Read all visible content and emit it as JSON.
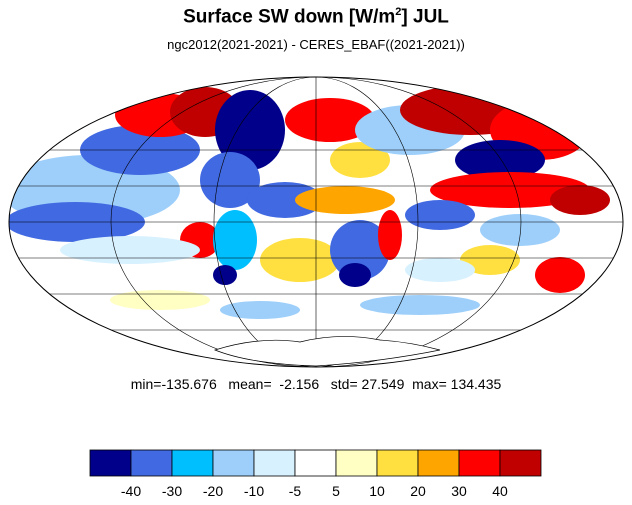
{
  "title": {
    "main": "Surface SW down [W/m",
    "superscript": "2",
    "close": "]  JUL"
  },
  "subtitle": "ngc2012(2021-2021) - CERES_EBAF((2021-2021))",
  "stats": {
    "min_label": "min=",
    "min": "-135.676",
    "mean_label": "mean=",
    "mean": "-2.156",
    "std_label": "std=",
    "std": "27.549",
    "max_label": "max=",
    "max": "134.435"
  },
  "colorbar": {
    "colors": [
      "#00008b",
      "#4169e1",
      "#00bfff",
      "#9dcffa",
      "#d8f1ff",
      "#ffffff",
      "#ffffc4",
      "#ffe040",
      "#ffa500",
      "#ff0000",
      "#c00000"
    ],
    "labels": [
      "-40",
      "-30",
      "-20",
      "-10",
      "-5",
      "5",
      "10",
      "20",
      "30",
      "40"
    ]
  },
  "map": {
    "projection": "Mollweide",
    "background": "#ffffff",
    "coastline_color": "#000000",
    "grid": true
  }
}
